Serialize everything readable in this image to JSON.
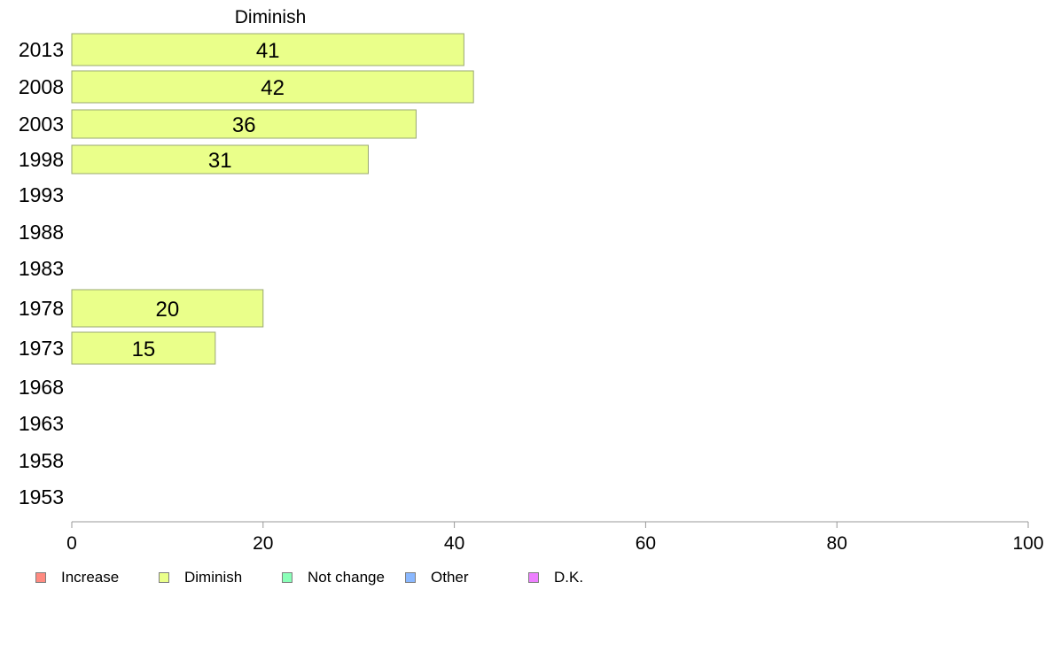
{
  "chart_data": {
    "type": "bar",
    "orientation": "horizontal",
    "title": "Diminish",
    "categories": [
      "2013",
      "2008",
      "2003",
      "1998",
      "1993",
      "1988",
      "1983",
      "1978",
      "1973",
      "1968",
      "1963",
      "1958",
      "1953"
    ],
    "values": [
      41,
      42,
      36,
      31,
      null,
      null,
      null,
      20,
      15,
      null,
      null,
      null,
      null
    ],
    "value_labels": [
      "41",
      "42",
      "36",
      "31",
      "",
      "",
      "",
      "20",
      "15",
      "",
      "",
      "",
      ""
    ],
    "xlim": [
      0,
      100
    ],
    "xticks": [
      0,
      20,
      40,
      60,
      80,
      100
    ],
    "xtick_labels": [
      "0",
      "20",
      "40",
      "60",
      "80",
      "100"
    ],
    "grid": false,
    "bar_color": "#eaff8a",
    "bar_border_color": "#9aa872",
    "legend_position": "bottom-left",
    "legend": [
      {
        "label": "Increase",
        "color": "#ff8a80"
      },
      {
        "label": "Diminish",
        "color": "#eaff8a"
      },
      {
        "label": "Not change",
        "color": "#8affb8"
      },
      {
        "label": "Other",
        "color": "#8ab8ff"
      },
      {
        "label": "D.K.",
        "color": "#ee80ff"
      }
    ]
  }
}
